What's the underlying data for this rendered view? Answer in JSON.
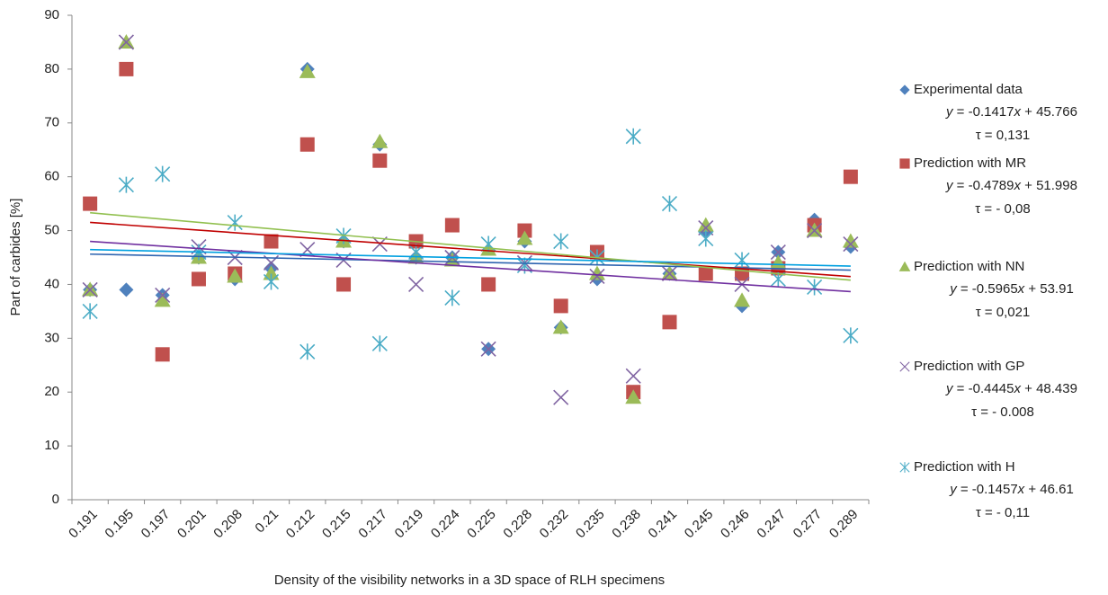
{
  "chart_data": {
    "type": "scatter",
    "x_label": "Density of the visibility networks in a 3D space of RLH specimens",
    "y_label": "Part of carbides [%]",
    "categories": [
      "0.191",
      "0.195",
      "0.197",
      "0.201",
      "0.208",
      "0.21",
      "0.212",
      "0.215",
      "0.217",
      "0.219",
      "0.224",
      "0.225",
      "0.228",
      "0.232",
      "0.235",
      "0.238",
      "0.241",
      "0.245",
      "0.246",
      "0.247",
      "0.277",
      "0.289"
    ],
    "ylim": [
      0,
      90
    ],
    "yticks": [
      0,
      10,
      20,
      30,
      40,
      50,
      60,
      70,
      80,
      90
    ],
    "grid": false,
    "series": [
      {
        "name": "Experimental data",
        "marker": "diamond",
        "color": "#4f81bd",
        "trend_color": "#2e64b0",
        "values": [
          39,
          39,
          38,
          45,
          41,
          43,
          80,
          48,
          66,
          45,
          45,
          28,
          48,
          32,
          41,
          20,
          42,
          50,
          36,
          46,
          52,
          47
        ],
        "trendline": {
          "slope": -0.1417,
          "intercept": 45.766,
          "label": "y = -0.1417x + 45.766",
          "tau": "τ = 0,131"
        }
      },
      {
        "name": "Prediction with MR",
        "marker": "square",
        "color": "#c0504d",
        "trend_color": "#c00000",
        "values": [
          55,
          80,
          27,
          41,
          42,
          48,
          66,
          40,
          63,
          48,
          51,
          40,
          50,
          36,
          46,
          20,
          33,
          42,
          42,
          43,
          51,
          60
        ],
        "trendline": {
          "slope": -0.4789,
          "intercept": 51.998,
          "label": "y = -0.4789x + 51.998",
          "tau": "τ = - 0,08"
        }
      },
      {
        "name": "Prediction with NN",
        "marker": "triangle",
        "color": "#9bbb59",
        "trend_color": "#92c050",
        "values": [
          39,
          85,
          37,
          45,
          41.5,
          42,
          79.5,
          48,
          66.5,
          45,
          44.5,
          46.5,
          48.5,
          32,
          42,
          19,
          42,
          51,
          37,
          44,
          50,
          48
        ],
        "trendline": {
          "slope": -0.5965,
          "intercept": 53.91,
          "label": "y = -0.5965x + 53.91",
          "tau": "τ = 0,021"
        }
      },
      {
        "name": "Prediction with GP",
        "marker": "x",
        "color": "#8064a2",
        "trend_color": "#7030a0",
        "values": [
          39,
          85,
          38,
          47,
          45,
          44,
          46.5,
          44.5,
          47.5,
          40,
          45,
          28,
          44,
          19,
          41.5,
          23,
          42,
          50.5,
          40,
          46,
          50,
          47.5
        ],
        "trendline": {
          "slope": -0.4445,
          "intercept": 48.439,
          "label": "y = -0.4445x + 48.439",
          "tau": "τ = - 0.008"
        }
      },
      {
        "name": "Prediction with H",
        "marker": "asterisk",
        "color": "#4bacc6",
        "trend_color": "#00a0e0",
        "values": [
          35,
          58.5,
          60.5,
          46,
          51.5,
          40.5,
          27.5,
          49,
          29,
          46,
          37.5,
          47.5,
          43.5,
          48,
          45,
          67.5,
          55,
          48.5,
          44.5,
          41,
          39.5,
          30.5
        ],
        "trendline": {
          "slope": -0.1457,
          "intercept": 46.61,
          "label": "y = -0.1457x + 46.61",
          "tau": "τ = - 0,11"
        }
      }
    ]
  }
}
